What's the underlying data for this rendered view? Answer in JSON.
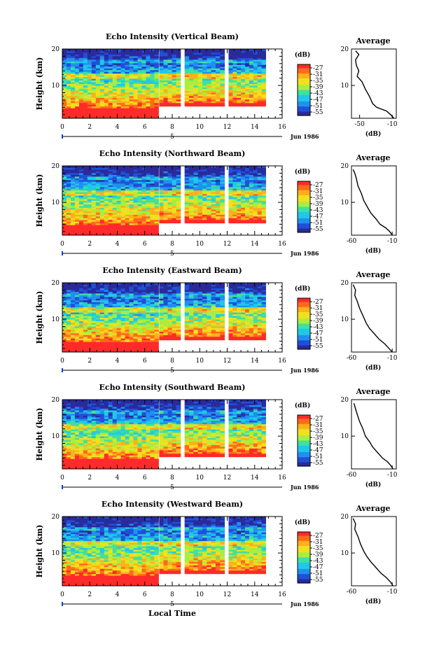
{
  "figure": {
    "xlabel": "Local Time",
    "date_label": "Jun 1986",
    "day_label": "5",
    "colorbar_title": "(dB)",
    "profile_title": "Average",
    "profile_xlabel": "(dB)"
  },
  "chart_data": [
    {
      "type": "heatmap",
      "title": "Echo Intensity (Vertical Beam)",
      "ylabel": "Height (km)",
      "xlim": [
        0,
        16
      ],
      "ylim": [
        1,
        20
      ],
      "xticks": [
        "0",
        "2",
        "4",
        "6",
        "8",
        "10",
        "12",
        "14",
        "16"
      ],
      "yticks": [
        "10",
        "20"
      ],
      "colorbar_ticks": [
        "-27",
        "-31",
        "-35",
        "-39",
        "-43",
        "-47",
        "-51",
        "-55"
      ],
      "profile": {
        "xlim": [
          -60,
          -5
        ],
        "xticks": [
          "-50",
          "-10"
        ],
        "yticks": [
          "10",
          "20"
        ],
        "points": [
          [
            -55,
            19.5
          ],
          [
            -51,
            18.5
          ],
          [
            -55,
            17
          ],
          [
            -54,
            15.5
          ],
          [
            -51,
            14
          ],
          [
            -53,
            12.5
          ],
          [
            -47,
            11
          ],
          [
            -43,
            9
          ],
          [
            -38,
            7
          ],
          [
            -34,
            5
          ],
          [
            -29,
            4
          ],
          [
            -17,
            3
          ],
          [
            -12,
            2
          ],
          [
            -8,
            1
          ]
        ]
      }
    },
    {
      "type": "heatmap",
      "title": "Echo Intensity (Northward Beam)",
      "ylabel": "Height (km)",
      "xlim": [
        0,
        16
      ],
      "ylim": [
        1,
        20
      ],
      "xticks": [
        "0",
        "2",
        "4",
        "6",
        "8",
        "10",
        "12",
        "14",
        "16"
      ],
      "yticks": [
        "10",
        "20"
      ],
      "colorbar_ticks": [
        "-27",
        "-31",
        "-35",
        "-39",
        "-43",
        "-47",
        "-51",
        "-55"
      ],
      "profile": {
        "xlim": [
          -60,
          -5
        ],
        "xticks": [
          "-60",
          "-10"
        ],
        "yticks": [
          "10",
          "20"
        ],
        "points": [
          [
            -58,
            19
          ],
          [
            -56,
            18
          ],
          [
            -54,
            16.5
          ],
          [
            -52,
            14.5
          ],
          [
            -48,
            12.5
          ],
          [
            -45,
            10.5
          ],
          [
            -40,
            8.5
          ],
          [
            -36,
            7
          ],
          [
            -30,
            5.5
          ],
          [
            -25,
            4
          ],
          [
            -18,
            3
          ],
          [
            -13,
            2
          ],
          [
            -10,
            1
          ]
        ]
      }
    },
    {
      "type": "heatmap",
      "title": "Echo Intensity (Eastward Beam)",
      "ylabel": "Height (km)",
      "xlim": [
        0,
        16
      ],
      "ylim": [
        1,
        20
      ],
      "xticks": [
        "0",
        "2",
        "4",
        "6",
        "8",
        "10",
        "12",
        "14",
        "16"
      ],
      "yticks": [
        "10",
        "20"
      ],
      "colorbar_ticks": [
        "-27",
        "-31",
        "-35",
        "-39",
        "-43",
        "-47",
        "-51",
        "-55"
      ],
      "profile": {
        "xlim": [
          -60,
          -5
        ],
        "xticks": [
          "-60",
          "-10"
        ],
        "yticks": [
          "10",
          "20"
        ],
        "points": [
          [
            -58,
            19.5
          ],
          [
            -55,
            18
          ],
          [
            -56,
            16.5
          ],
          [
            -53,
            15
          ],
          [
            -50,
            13
          ],
          [
            -46,
            11
          ],
          [
            -42,
            9
          ],
          [
            -38,
            7.5
          ],
          [
            -32,
            6
          ],
          [
            -26,
            4.5
          ],
          [
            -19,
            3.2
          ],
          [
            -14,
            2
          ],
          [
            -10,
            1
          ]
        ]
      }
    },
    {
      "type": "heatmap",
      "title": "Echo Intensity (Southward Beam)",
      "ylabel": "Height (km)",
      "xlim": [
        0,
        16
      ],
      "ylim": [
        1,
        20
      ],
      "xticks": [
        "0",
        "2",
        "4",
        "6",
        "8",
        "10",
        "12",
        "14",
        "16"
      ],
      "yticks": [
        "10",
        "20"
      ],
      "colorbar_ticks": [
        "-27",
        "-31",
        "-35",
        "-39",
        "-43",
        "-47",
        "-51",
        "-55"
      ],
      "profile": {
        "xlim": [
          -60,
          -5
        ],
        "xticks": [
          "-60",
          "-10"
        ],
        "yticks": [
          "10",
          "20"
        ],
        "points": [
          [
            -57,
            19
          ],
          [
            -55,
            17.5
          ],
          [
            -53,
            16
          ],
          [
            -50,
            14
          ],
          [
            -46,
            12
          ],
          [
            -43,
            10
          ],
          [
            -38,
            8.5
          ],
          [
            -34,
            7
          ],
          [
            -28,
            5.5
          ],
          [
            -22,
            4
          ],
          [
            -16,
            3
          ],
          [
            -12,
            2
          ],
          [
            -9,
            1
          ]
        ]
      }
    },
    {
      "type": "heatmap",
      "title": "Echo Intensity (Westward Beam)",
      "ylabel": "Height (km)",
      "xlim": [
        0,
        16
      ],
      "ylim": [
        1,
        20
      ],
      "xticks": [
        "0",
        "2",
        "4",
        "6",
        "8",
        "10",
        "12",
        "14",
        "16"
      ],
      "yticks": [
        "10",
        "20"
      ],
      "colorbar_ticks": [
        "-27",
        "-31",
        "-35",
        "-39",
        "-43",
        "-47",
        "-51",
        "-55"
      ],
      "profile": {
        "xlim": [
          -60,
          -5
        ],
        "xticks": [
          "-60",
          "-10"
        ],
        "yticks": [
          "10",
          "20"
        ],
        "points": [
          [
            -58,
            19.5
          ],
          [
            -55,
            18
          ],
          [
            -56,
            16.5
          ],
          [
            -52,
            14.5
          ],
          [
            -49,
            12.5
          ],
          [
            -45,
            10.5
          ],
          [
            -41,
            9
          ],
          [
            -36,
            7.5
          ],
          [
            -30,
            6
          ],
          [
            -24,
            4.5
          ],
          [
            -17,
            3.2
          ],
          [
            -12,
            2
          ],
          [
            -9,
            1
          ]
        ]
      }
    }
  ],
  "colors": {
    "bg": "#ffffff",
    "colormap": [
      "#ff2a2a",
      "#ff6a1a",
      "#ffb01a",
      "#f0e020",
      "#a8ee40",
      "#40e0a0",
      "#20c8e8",
      "#2090f0",
      "#2050d8",
      "#2a2a9a"
    ]
  }
}
